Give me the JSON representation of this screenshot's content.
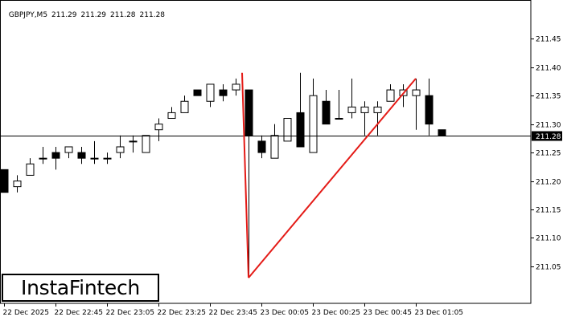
{
  "header": {
    "symbol": "GBPJPY,M5",
    "open": "211.29",
    "high": "211.29",
    "low": "211.28",
    "close": "211.28"
  },
  "logo": {
    "text": "InstaFintech"
  },
  "colors": {
    "background": "#ffffff",
    "candle_bull_fill": "#ffffff",
    "candle_bear_fill": "#000000",
    "candle_outline": "#000000",
    "pattern_line": "#e41b17",
    "price_line": "#000000",
    "price_label_bg": "#000000",
    "price_label_text": "#ffffff"
  },
  "chart_data": {
    "type": "candlestick",
    "title": "",
    "xlabel": "",
    "ylabel": "",
    "ylim": [
      210.985,
      211.518
    ],
    "yticks": [
      "211.45",
      "211.40",
      "211.35",
      "211.30",
      "211.25",
      "211.20",
      "211.15",
      "211.10",
      "211.05"
    ],
    "xticks": [
      "22 Dec 2025",
      "22 Dec 22:45",
      "22 Dec 23:05",
      "22 Dec 23:25",
      "22 Dec 23:45",
      "23 Dec 00:05",
      "23 Dec 00:25",
      "23 Dec 00:45",
      "23 Dec 01:05"
    ],
    "xtick_index": [
      0,
      4,
      8,
      12,
      16,
      20,
      24,
      28,
      32
    ],
    "current_price": "211.28",
    "candles": [
      {
        "o": 211.22,
        "h": 211.22,
        "l": 211.18,
        "c": 211.18
      },
      {
        "o": 211.19,
        "h": 211.21,
        "l": 211.18,
        "c": 211.2
      },
      {
        "o": 211.21,
        "h": 211.24,
        "l": 211.21,
        "c": 211.23
      },
      {
        "o": 211.24,
        "h": 211.26,
        "l": 211.23,
        "c": 211.24
      },
      {
        "o": 211.25,
        "h": 211.26,
        "l": 211.22,
        "c": 211.24
      },
      {
        "o": 211.25,
        "h": 211.26,
        "l": 211.24,
        "c": 211.26
      },
      {
        "o": 211.25,
        "h": 211.26,
        "l": 211.23,
        "c": 211.24
      },
      {
        "o": 211.24,
        "h": 211.27,
        "l": 211.23,
        "c": 211.24
      },
      {
        "o": 211.24,
        "h": 211.25,
        "l": 211.23,
        "c": 211.24
      },
      {
        "o": 211.25,
        "h": 211.28,
        "l": 211.24,
        "c": 211.26
      },
      {
        "o": 211.27,
        "h": 211.28,
        "l": 211.25,
        "c": 211.27
      },
      {
        "o": 211.25,
        "h": 211.28,
        "l": 211.25,
        "c": 211.28
      },
      {
        "o": 211.29,
        "h": 211.31,
        "l": 211.27,
        "c": 211.3
      },
      {
        "o": 211.31,
        "h": 211.33,
        "l": 211.31,
        "c": 211.32
      },
      {
        "o": 211.32,
        "h": 211.35,
        "l": 211.32,
        "c": 211.34
      },
      {
        "o": 211.36,
        "h": 211.36,
        "l": 211.35,
        "c": 211.35
      },
      {
        "o": 211.34,
        "h": 211.37,
        "l": 211.33,
        "c": 211.37
      },
      {
        "o": 211.36,
        "h": 211.37,
        "l": 211.34,
        "c": 211.35
      },
      {
        "o": 211.36,
        "h": 211.38,
        "l": 211.35,
        "c": 211.37
      },
      {
        "o": 211.36,
        "h": 211.36,
        "l": 211.03,
        "c": 211.28
      },
      {
        "o": 211.27,
        "h": 211.28,
        "l": 211.24,
        "c": 211.25
      },
      {
        "o": 211.24,
        "h": 211.3,
        "l": 211.24,
        "c": 211.28
      },
      {
        "o": 211.27,
        "h": 211.31,
        "l": 211.27,
        "c": 211.31
      },
      {
        "o": 211.32,
        "h": 211.39,
        "l": 211.26,
        "c": 211.26
      },
      {
        "o": 211.25,
        "h": 211.38,
        "l": 211.25,
        "c": 211.35
      },
      {
        "o": 211.34,
        "h": 211.36,
        "l": 211.3,
        "c": 211.3
      },
      {
        "o": 211.31,
        "h": 211.36,
        "l": 211.31,
        "c": 211.31
      },
      {
        "o": 211.32,
        "h": 211.38,
        "l": 211.31,
        "c": 211.33
      },
      {
        "o": 211.32,
        "h": 211.34,
        "l": 211.28,
        "c": 211.33
      },
      {
        "o": 211.32,
        "h": 211.34,
        "l": 211.28,
        "c": 211.33
      },
      {
        "o": 211.34,
        "h": 211.37,
        "l": 211.34,
        "c": 211.36
      },
      {
        "o": 211.35,
        "h": 211.37,
        "l": 211.33,
        "c": 211.36
      },
      {
        "o": 211.35,
        "h": 211.38,
        "l": 211.29,
        "c": 211.36
      },
      {
        "o": 211.35,
        "h": 211.38,
        "l": 211.28,
        "c": 211.3
      },
      {
        "o": 211.29,
        "h": 211.29,
        "l": 211.28,
        "c": 211.28
      }
    ],
    "pattern_lines": [
      {
        "from": {
          "i": 18.5,
          "price": 211.39
        },
        "to": {
          "i": 19.0,
          "price": 211.03
        }
      },
      {
        "from": {
          "i": 19.0,
          "price": 211.03
        },
        "to": {
          "i": 32.0,
          "price": 211.38
        }
      }
    ]
  }
}
